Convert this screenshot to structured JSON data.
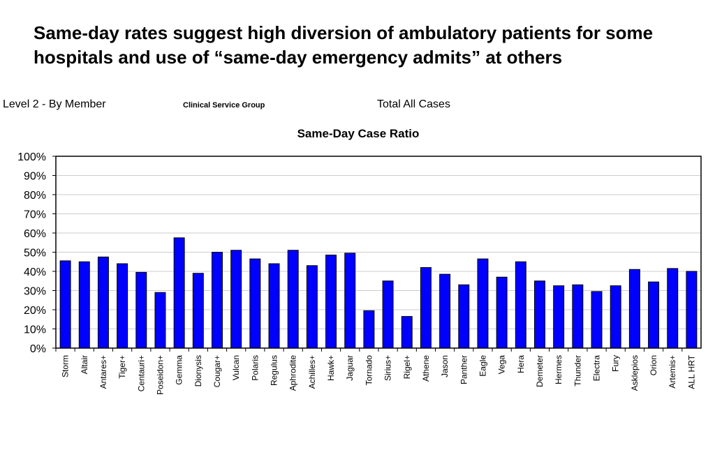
{
  "headline": "Same-day rates suggest high diversion of ambulatory patients for some hospitals and use of “same-day emergency admits” at others",
  "subheader": {
    "level": "Level 2 - By Member",
    "group": "Clinical Service Group",
    "cases": "Total All Cases"
  },
  "colors": {
    "bar": "#0000ff",
    "bar_stroke": "#000000",
    "grid": "#cccccc"
  },
  "chart_data": {
    "type": "bar",
    "title": "Same-Day Case Ratio",
    "xlabel": "",
    "ylabel": "",
    "ylim": [
      0,
      1
    ],
    "yticks": [
      "0%",
      "10%",
      "20%",
      "30%",
      "40%",
      "50%",
      "60%",
      "70%",
      "80%",
      "90%",
      "100%"
    ],
    "grid": true,
    "categories": [
      "Storm",
      "Altair",
      "Antares+",
      "Tiger+",
      "Centauri+",
      "Poseidon+",
      "Gemma",
      "Dionysis",
      "Cougar+",
      "Vulcan",
      "Polaris",
      "Regulus",
      "Aphrodite",
      "Achilles+",
      "Hawk+",
      "Jaguar",
      "Tornado",
      "Sirius+",
      "Rigel+",
      "Athene",
      "Jason",
      "Panther",
      "Eagle",
      "Vega",
      "Hera",
      "Demeter",
      "Hermes",
      "Thunder",
      "Electra",
      "Fury",
      "Asklepios",
      "Orion",
      "Artemis+",
      "ALL HRT"
    ],
    "values": [
      0.455,
      0.45,
      0.475,
      0.44,
      0.395,
      0.29,
      0.575,
      0.39,
      0.5,
      0.51,
      0.465,
      0.44,
      0.51,
      0.43,
      0.485,
      0.495,
      0.195,
      0.35,
      0.165,
      0.42,
      0.385,
      0.33,
      0.465,
      0.37,
      0.45,
      0.35,
      0.325,
      0.33,
      0.295,
      0.325,
      0.41,
      0.345,
      0.415,
      0.4
    ]
  }
}
